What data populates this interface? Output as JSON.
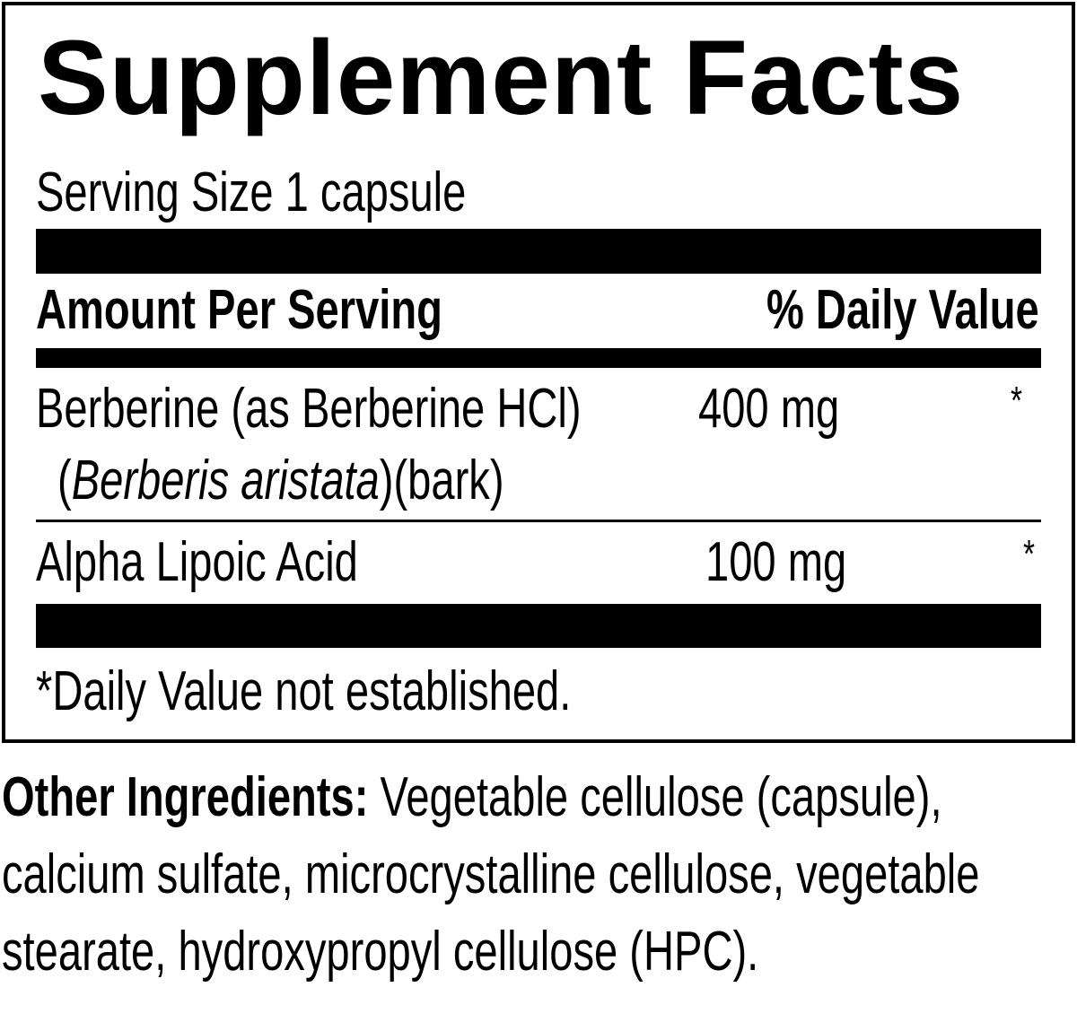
{
  "label": {
    "title": "Supplement Facts",
    "serving_size": "Serving Size 1 capsule",
    "header": {
      "amount": "Amount Per Serving",
      "daily_value": "% Daily Value"
    },
    "ingredients": [
      {
        "name": "Berberine (as Berberine HCl)",
        "source_italic": "Berberis aristata",
        "source_open": "(",
        "source_close": ")(bark)",
        "amount": "400 mg",
        "dv": "*"
      },
      {
        "name": "Alpha Lipoic Acid",
        "amount": "100 mg",
        "dv": "*"
      }
    ],
    "footnote": "*Daily Value not established."
  },
  "other_ingredients": {
    "label": "Other Ingredients:",
    "text": " Vegetable cellulose (capsule), calcium sulfate, microcrystalline cellulose, vegetable stearate, hydroxypropyl cellulose (HPC)."
  }
}
